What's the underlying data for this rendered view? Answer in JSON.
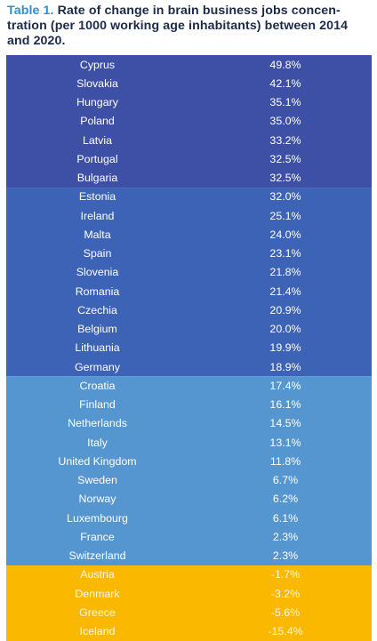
{
  "caption": {
    "label": "Table 1.",
    "text": " Rate of change in brain business jobs concen-tration (per 1000 working age inhabitants) between 2014 and 2020."
  },
  "colors": {
    "group_1": "#3e4fa6",
    "group_2": "#3d63b6",
    "group_3": "#5596d1",
    "group_4": "#fbb800",
    "caption_label": "#2a8fd6"
  },
  "rows": [
    {
      "country": "Cyprus",
      "value": "49.8%",
      "group": 0
    },
    {
      "country": "Slovakia",
      "value": "42.1%",
      "group": 0
    },
    {
      "country": "Hungary",
      "value": "35.1%",
      "group": 0
    },
    {
      "country": "Poland",
      "value": "35.0%",
      "group": 0
    },
    {
      "country": "Latvia",
      "value": "33.2%",
      "group": 0
    },
    {
      "country": "Portugal",
      "value": "32.5%",
      "group": 0
    },
    {
      "country": "Bulgaria",
      "value": "32.5%",
      "group": 0
    },
    {
      "country": "Estonia",
      "value": "32.0%",
      "group": 1
    },
    {
      "country": "Ireland",
      "value": "25.1%",
      "group": 1
    },
    {
      "country": "Malta",
      "value": "24.0%",
      "group": 1
    },
    {
      "country": "Spain",
      "value": "23.1%",
      "group": 1
    },
    {
      "country": "Slovenia",
      "value": "21.8%",
      "group": 1
    },
    {
      "country": "Romania",
      "value": "21.4%",
      "group": 1
    },
    {
      "country": "Czechia",
      "value": "20.9%",
      "group": 1
    },
    {
      "country": "Belgium",
      "value": "20.0%",
      "group": 1
    },
    {
      "country": "Lithuania",
      "value": "19.9%",
      "group": 1
    },
    {
      "country": "Germany",
      "value": "18.9%",
      "group": 1
    },
    {
      "country": "Croatia",
      "value": "17.4%",
      "group": 2
    },
    {
      "country": "Finland",
      "value": "16.1%",
      "group": 2
    },
    {
      "country": "Netherlands",
      "value": "14.5%",
      "group": 2
    },
    {
      "country": "Italy",
      "value": "13.1%",
      "group": 2
    },
    {
      "country": "United Kingdom",
      "value": "11.8%",
      "group": 2
    },
    {
      "country": "Sweden",
      "value": "6.7%",
      "group": 2
    },
    {
      "country": "Norway",
      "value": "6.2%",
      "group": 2
    },
    {
      "country": "Luxembourg",
      "value": "6.1%",
      "group": 2
    },
    {
      "country": "France",
      "value": "2.3%",
      "group": 2
    },
    {
      "country": "Switzerland",
      "value": "2.3%",
      "group": 2
    },
    {
      "country": "Austria",
      "value": "-1.7%",
      "group": 3
    },
    {
      "country": "Denmark",
      "value": "-3.2%",
      "group": 3
    },
    {
      "country": "Greece",
      "value": "-5.6%",
      "group": 3
    },
    {
      "country": "Iceland",
      "value": "-15.4%",
      "group": 3
    }
  ]
}
